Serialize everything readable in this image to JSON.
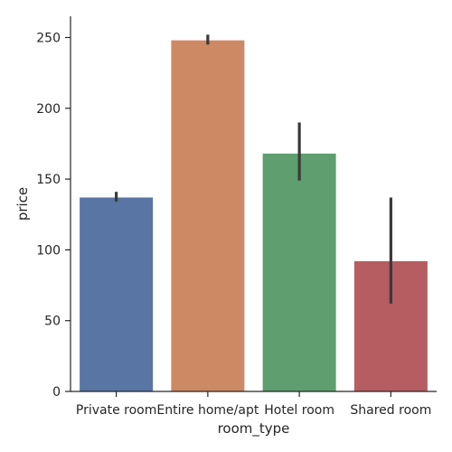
{
  "chart_data": {
    "type": "bar",
    "xlabel": "room_type",
    "ylabel": "price",
    "categories": [
      "Private room",
      "Entire home/apt",
      "Hotel room",
      "Shared room"
    ],
    "values": [
      137,
      248,
      168,
      92
    ],
    "error_low": [
      134,
      245,
      149,
      62
    ],
    "error_high": [
      141,
      252,
      190,
      137
    ],
    "colors": [
      "#5875a4",
      "#cc8963",
      "#5f9e6e",
      "#b55d60"
    ],
    "yticks": [
      0,
      50,
      100,
      150,
      200,
      250
    ],
    "ylim": [
      0,
      265
    ],
    "grid": false,
    "legend": "none"
  }
}
